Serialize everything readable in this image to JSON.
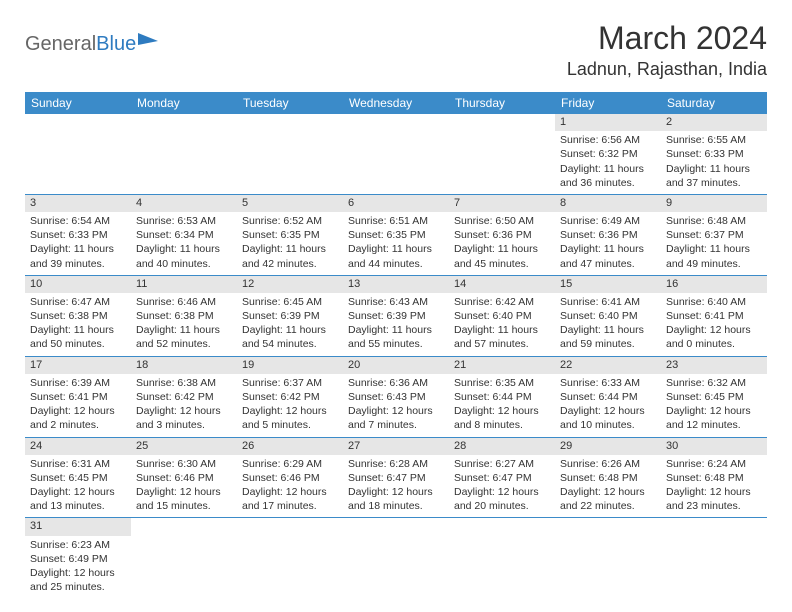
{
  "logo": {
    "part1": "General",
    "part2": "Blue"
  },
  "title": "March 2024",
  "location": "Ladnun, Rajasthan, India",
  "header_bg": "#3b8bc9",
  "daynum_bg": "#e6e6e6",
  "border_color": "#3b8bc9",
  "weekdays": [
    "Sunday",
    "Monday",
    "Tuesday",
    "Wednesday",
    "Thursday",
    "Friday",
    "Saturday"
  ],
  "weeks": [
    [
      {
        "n": "",
        "sunrise": "",
        "sunset": "",
        "daylight": ""
      },
      {
        "n": "",
        "sunrise": "",
        "sunset": "",
        "daylight": ""
      },
      {
        "n": "",
        "sunrise": "",
        "sunset": "",
        "daylight": ""
      },
      {
        "n": "",
        "sunrise": "",
        "sunset": "",
        "daylight": ""
      },
      {
        "n": "",
        "sunrise": "",
        "sunset": "",
        "daylight": ""
      },
      {
        "n": "1",
        "sunrise": "Sunrise: 6:56 AM",
        "sunset": "Sunset: 6:32 PM",
        "daylight": "Daylight: 11 hours and 36 minutes."
      },
      {
        "n": "2",
        "sunrise": "Sunrise: 6:55 AM",
        "sunset": "Sunset: 6:33 PM",
        "daylight": "Daylight: 11 hours and 37 minutes."
      }
    ],
    [
      {
        "n": "3",
        "sunrise": "Sunrise: 6:54 AM",
        "sunset": "Sunset: 6:33 PM",
        "daylight": "Daylight: 11 hours and 39 minutes."
      },
      {
        "n": "4",
        "sunrise": "Sunrise: 6:53 AM",
        "sunset": "Sunset: 6:34 PM",
        "daylight": "Daylight: 11 hours and 40 minutes."
      },
      {
        "n": "5",
        "sunrise": "Sunrise: 6:52 AM",
        "sunset": "Sunset: 6:35 PM",
        "daylight": "Daylight: 11 hours and 42 minutes."
      },
      {
        "n": "6",
        "sunrise": "Sunrise: 6:51 AM",
        "sunset": "Sunset: 6:35 PM",
        "daylight": "Daylight: 11 hours and 44 minutes."
      },
      {
        "n": "7",
        "sunrise": "Sunrise: 6:50 AM",
        "sunset": "Sunset: 6:36 PM",
        "daylight": "Daylight: 11 hours and 45 minutes."
      },
      {
        "n": "8",
        "sunrise": "Sunrise: 6:49 AM",
        "sunset": "Sunset: 6:36 PM",
        "daylight": "Daylight: 11 hours and 47 minutes."
      },
      {
        "n": "9",
        "sunrise": "Sunrise: 6:48 AM",
        "sunset": "Sunset: 6:37 PM",
        "daylight": "Daylight: 11 hours and 49 minutes."
      }
    ],
    [
      {
        "n": "10",
        "sunrise": "Sunrise: 6:47 AM",
        "sunset": "Sunset: 6:38 PM",
        "daylight": "Daylight: 11 hours and 50 minutes."
      },
      {
        "n": "11",
        "sunrise": "Sunrise: 6:46 AM",
        "sunset": "Sunset: 6:38 PM",
        "daylight": "Daylight: 11 hours and 52 minutes."
      },
      {
        "n": "12",
        "sunrise": "Sunrise: 6:45 AM",
        "sunset": "Sunset: 6:39 PM",
        "daylight": "Daylight: 11 hours and 54 minutes."
      },
      {
        "n": "13",
        "sunrise": "Sunrise: 6:43 AM",
        "sunset": "Sunset: 6:39 PM",
        "daylight": "Daylight: 11 hours and 55 minutes."
      },
      {
        "n": "14",
        "sunrise": "Sunrise: 6:42 AM",
        "sunset": "Sunset: 6:40 PM",
        "daylight": "Daylight: 11 hours and 57 minutes."
      },
      {
        "n": "15",
        "sunrise": "Sunrise: 6:41 AM",
        "sunset": "Sunset: 6:40 PM",
        "daylight": "Daylight: 11 hours and 59 minutes."
      },
      {
        "n": "16",
        "sunrise": "Sunrise: 6:40 AM",
        "sunset": "Sunset: 6:41 PM",
        "daylight": "Daylight: 12 hours and 0 minutes."
      }
    ],
    [
      {
        "n": "17",
        "sunrise": "Sunrise: 6:39 AM",
        "sunset": "Sunset: 6:41 PM",
        "daylight": "Daylight: 12 hours and 2 minutes."
      },
      {
        "n": "18",
        "sunrise": "Sunrise: 6:38 AM",
        "sunset": "Sunset: 6:42 PM",
        "daylight": "Daylight: 12 hours and 3 minutes."
      },
      {
        "n": "19",
        "sunrise": "Sunrise: 6:37 AM",
        "sunset": "Sunset: 6:42 PM",
        "daylight": "Daylight: 12 hours and 5 minutes."
      },
      {
        "n": "20",
        "sunrise": "Sunrise: 6:36 AM",
        "sunset": "Sunset: 6:43 PM",
        "daylight": "Daylight: 12 hours and 7 minutes."
      },
      {
        "n": "21",
        "sunrise": "Sunrise: 6:35 AM",
        "sunset": "Sunset: 6:44 PM",
        "daylight": "Daylight: 12 hours and 8 minutes."
      },
      {
        "n": "22",
        "sunrise": "Sunrise: 6:33 AM",
        "sunset": "Sunset: 6:44 PM",
        "daylight": "Daylight: 12 hours and 10 minutes."
      },
      {
        "n": "23",
        "sunrise": "Sunrise: 6:32 AM",
        "sunset": "Sunset: 6:45 PM",
        "daylight": "Daylight: 12 hours and 12 minutes."
      }
    ],
    [
      {
        "n": "24",
        "sunrise": "Sunrise: 6:31 AM",
        "sunset": "Sunset: 6:45 PM",
        "daylight": "Daylight: 12 hours and 13 minutes."
      },
      {
        "n": "25",
        "sunrise": "Sunrise: 6:30 AM",
        "sunset": "Sunset: 6:46 PM",
        "daylight": "Daylight: 12 hours and 15 minutes."
      },
      {
        "n": "26",
        "sunrise": "Sunrise: 6:29 AM",
        "sunset": "Sunset: 6:46 PM",
        "daylight": "Daylight: 12 hours and 17 minutes."
      },
      {
        "n": "27",
        "sunrise": "Sunrise: 6:28 AM",
        "sunset": "Sunset: 6:47 PM",
        "daylight": "Daylight: 12 hours and 18 minutes."
      },
      {
        "n": "28",
        "sunrise": "Sunrise: 6:27 AM",
        "sunset": "Sunset: 6:47 PM",
        "daylight": "Daylight: 12 hours and 20 minutes."
      },
      {
        "n": "29",
        "sunrise": "Sunrise: 6:26 AM",
        "sunset": "Sunset: 6:48 PM",
        "daylight": "Daylight: 12 hours and 22 minutes."
      },
      {
        "n": "30",
        "sunrise": "Sunrise: 6:24 AM",
        "sunset": "Sunset: 6:48 PM",
        "daylight": "Daylight: 12 hours and 23 minutes."
      }
    ],
    [
      {
        "n": "31",
        "sunrise": "Sunrise: 6:23 AM",
        "sunset": "Sunset: 6:49 PM",
        "daylight": "Daylight: 12 hours and 25 minutes."
      },
      {
        "n": "",
        "sunrise": "",
        "sunset": "",
        "daylight": ""
      },
      {
        "n": "",
        "sunrise": "",
        "sunset": "",
        "daylight": ""
      },
      {
        "n": "",
        "sunrise": "",
        "sunset": "",
        "daylight": ""
      },
      {
        "n": "",
        "sunrise": "",
        "sunset": "",
        "daylight": ""
      },
      {
        "n": "",
        "sunrise": "",
        "sunset": "",
        "daylight": ""
      },
      {
        "n": "",
        "sunrise": "",
        "sunset": "",
        "daylight": ""
      }
    ]
  ]
}
